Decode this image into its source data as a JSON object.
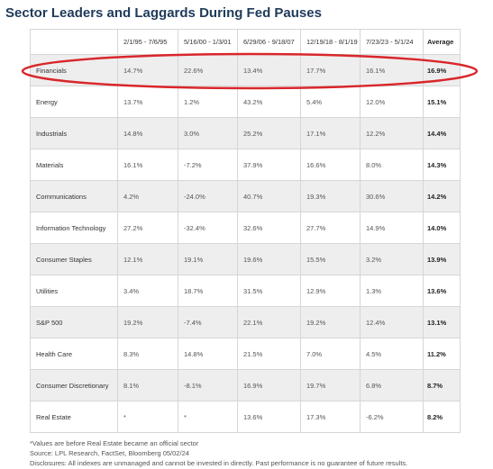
{
  "header": {
    "title": "Sector Leaders and Laggards During Fed Pauses"
  },
  "table": {
    "columns": [
      "2/1/95 - 7/6/95",
      "5/16/00 - 1/3/01",
      "6/29/06 - 9/18/07",
      "12/19/18 - 8/1/19",
      "7/23/23 - 5/1/24",
      "Average"
    ],
    "rows": [
      [
        "Financials",
        "14.7%",
        "22.6%",
        "13.4%",
        "17.7%",
        "16.1%",
        "16.9%"
      ],
      [
        "Energy",
        "13.7%",
        "1.2%",
        "43.2%",
        "5.4%",
        "12.0%",
        "15.1%"
      ],
      [
        "Industrials",
        "14.8%",
        "3.0%",
        "25.2%",
        "17.1%",
        "12.2%",
        "14.4%"
      ],
      [
        "Materials",
        "16.1%",
        "-7.2%",
        "37.9%",
        "16.6%",
        "8.0%",
        "14.3%"
      ],
      [
        "Communications",
        "4.2%",
        "-24.0%",
        "40.7%",
        "19.3%",
        "30.6%",
        "14.2%"
      ],
      [
        "Information Technology",
        "27.2%",
        "-32.4%",
        "32.6%",
        "27.7%",
        "14.9%",
        "14.0%"
      ],
      [
        "Consumer Staples",
        "12.1%",
        "19.1%",
        "19.6%",
        "15.5%",
        "3.2%",
        "13.9%"
      ],
      [
        "Utilities",
        "3.4%",
        "18.7%",
        "31.5%",
        "12.9%",
        "1.3%",
        "13.6%"
      ],
      [
        "S&P 500",
        "19.2%",
        "-7.4%",
        "22.1%",
        "19.2%",
        "12.4%",
        "13.1%"
      ],
      [
        "Health Care",
        "8.3%",
        "14.8%",
        "21.5%",
        "7.0%",
        "4.5%",
        "11.2%"
      ],
      [
        "Consumer Discretionary",
        "8.1%",
        "-8.1%",
        "16.9%",
        "19.7%",
        "6.8%",
        "8.7%"
      ],
      [
        "Real Estate",
        "*",
        "*",
        "13.6%",
        "17.3%",
        "-6.2%",
        "8.2%"
      ]
    ]
  },
  "footnotes": [
    "*Values are before Real Estate became an official sector",
    "Source: LPL Research, FactSet, Bloomberg 05/02/24",
    "Disclosures: All indexes are unmanaged and cannot be invested in directly. Past performance is no guarantee of future results."
  ]
}
